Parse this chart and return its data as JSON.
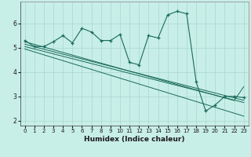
{
  "xlabel": "Humidex (Indice chaleur)",
  "bg_color": "#c8eee8",
  "grid_color": "#a8d8d0",
  "line_color": "#1a6b5a",
  "x": [
    0,
    1,
    2,
    3,
    4,
    5,
    6,
    7,
    8,
    9,
    10,
    11,
    12,
    13,
    14,
    15,
    16,
    17,
    18,
    19,
    20,
    21,
    22,
    23
  ],
  "y_main": [
    5.3,
    5.05,
    5.05,
    5.25,
    5.5,
    5.2,
    5.8,
    5.65,
    5.3,
    5.3,
    5.55,
    4.4,
    4.3,
    5.5,
    5.4,
    6.35,
    6.5,
    6.4,
    3.6,
    2.4,
    2.65,
    3.0,
    3.0,
    2.95
  ],
  "y_line1": [
    5.25,
    5.14,
    5.03,
    4.92,
    4.81,
    4.7,
    4.59,
    4.48,
    4.37,
    4.26,
    4.15,
    4.04,
    3.93,
    3.82,
    3.71,
    3.6,
    3.49,
    3.38,
    3.27,
    3.16,
    3.05,
    2.94,
    2.83,
    3.4
  ],
  "y_line2": [
    5.15,
    5.04,
    4.94,
    4.84,
    4.74,
    4.64,
    4.54,
    4.44,
    4.34,
    4.24,
    4.14,
    4.04,
    3.94,
    3.84,
    3.74,
    3.64,
    3.54,
    3.44,
    3.34,
    3.24,
    3.14,
    3.04,
    2.94,
    2.84
  ],
  "y_line3": [
    5.05,
    4.95,
    4.85,
    4.75,
    4.65,
    4.55,
    4.45,
    4.35,
    4.25,
    4.15,
    4.05,
    3.95,
    3.85,
    3.75,
    3.65,
    3.55,
    3.45,
    3.35,
    3.25,
    3.15,
    3.05,
    2.95,
    2.85,
    2.75
  ],
  "y_line4": [
    4.95,
    4.83,
    4.71,
    4.59,
    4.47,
    4.35,
    4.23,
    4.11,
    3.99,
    3.87,
    3.75,
    3.63,
    3.51,
    3.39,
    3.27,
    3.15,
    3.03,
    2.91,
    2.79,
    2.67,
    2.55,
    2.43,
    2.31,
    2.19
  ],
  "ylim": [
    1.8,
    6.9
  ],
  "yticks": [
    2,
    3,
    4,
    5,
    6
  ],
  "xticks": [
    0,
    1,
    2,
    3,
    4,
    5,
    6,
    7,
    8,
    9,
    10,
    11,
    12,
    13,
    14,
    15,
    16,
    17,
    18,
    19,
    20,
    21,
    22,
    23
  ]
}
